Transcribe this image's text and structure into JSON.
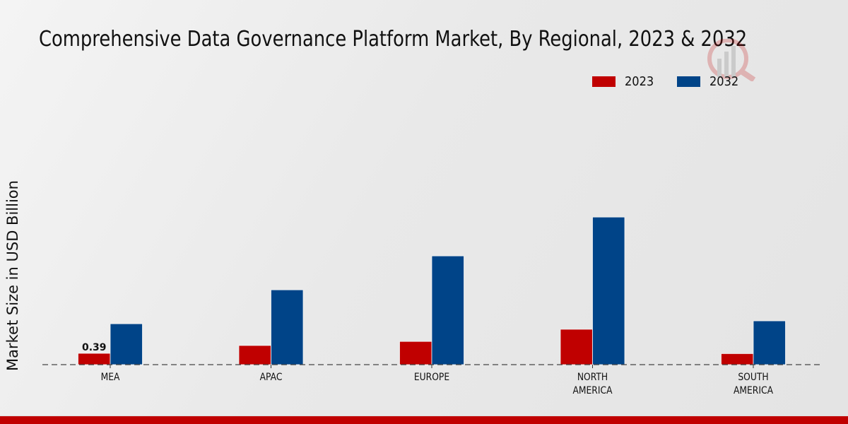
{
  "chart_data": {
    "type": "bar",
    "title": "Comprehensive Data Governance Platform Market, By Regional, 2023 & 2032",
    "xlabel": "",
    "ylabel": "Market Size in USD Billion",
    "categories": [
      "MEA",
      "APAC",
      "EUROPE",
      "NORTH AMERICA",
      "SOUTH AMERICA"
    ],
    "category_lines": [
      [
        "MEA"
      ],
      [
        "APAC"
      ],
      [
        "EUROPE"
      ],
      [
        "NORTH",
        "AMERICA"
      ],
      [
        "SOUTH",
        "AMERICA"
      ]
    ],
    "series": [
      {
        "name": "2023",
        "color": "#c00000",
        "values": [
          0.39,
          0.66,
          0.8,
          1.22,
          0.38
        ]
      },
      {
        "name": "2032",
        "color": "#004488",
        "values": [
          1.41,
          2.58,
          3.75,
          5.09,
          1.51
        ]
      }
    ],
    "data_labels": [
      {
        "series": "2023",
        "category": "MEA",
        "text": "0.39"
      }
    ],
    "ylim": [
      0,
      6.0
    ],
    "grid": false,
    "legend_position": "top-right",
    "baseline_style": "dashed"
  },
  "footer": {
    "accent_color": "#c00000"
  }
}
